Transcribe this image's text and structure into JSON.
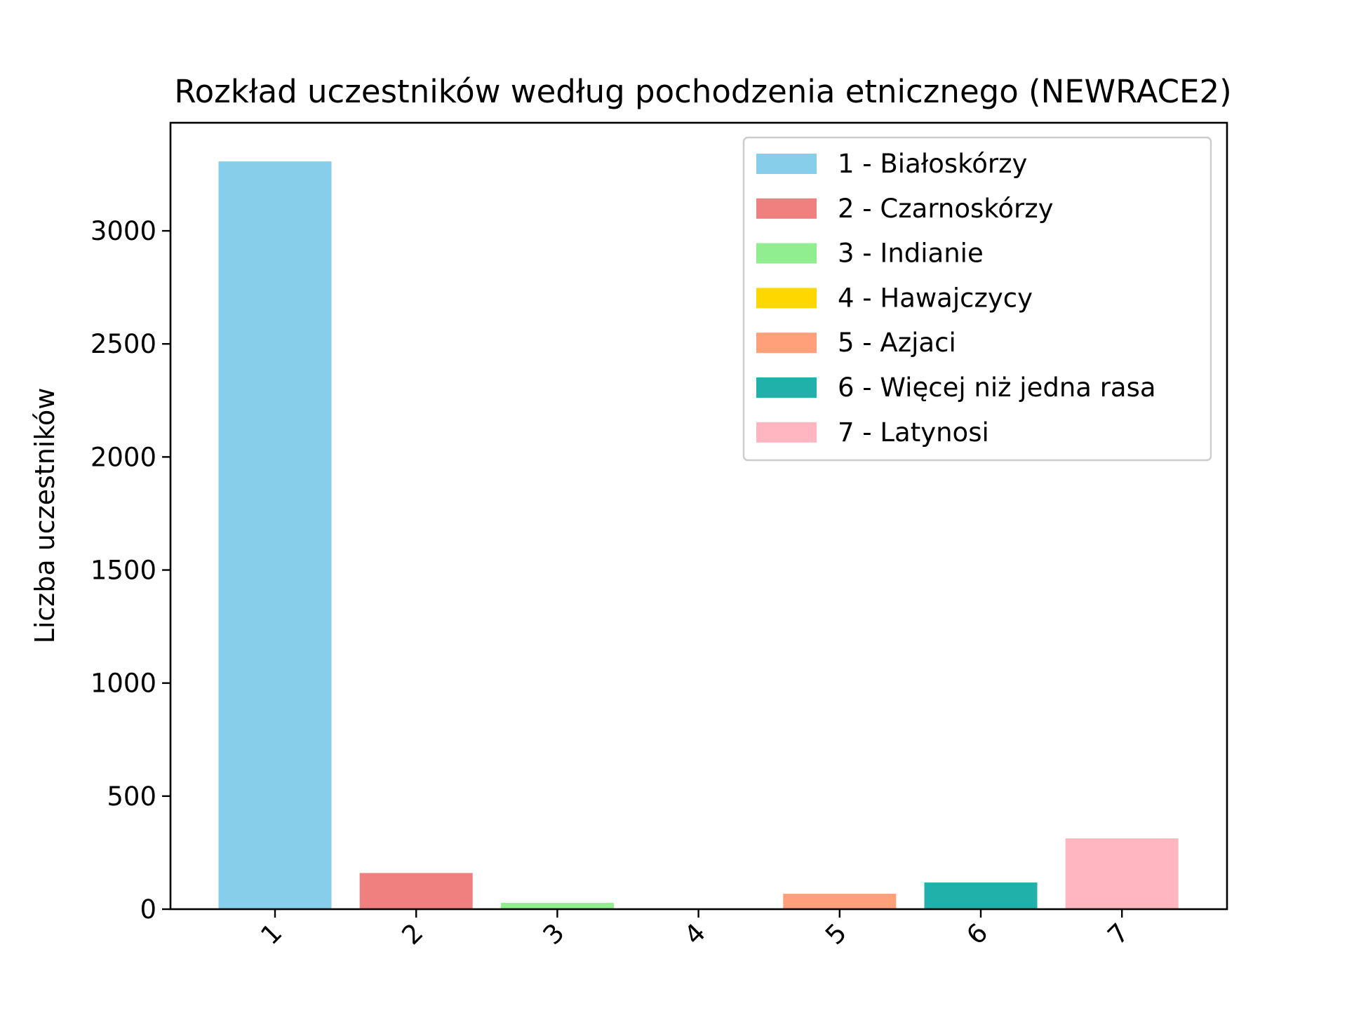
{
  "chart_data": {
    "type": "bar",
    "title": "Rozkład uczestników według pochodzenia etnicznego (NEWRACE2)",
    "xlabel": "",
    "ylabel": "Liczba uczestników",
    "categories": [
      "1",
      "2",
      "3",
      "4",
      "5",
      "6",
      "7"
    ],
    "values": [
      3307,
      160,
      28,
      3,
      68,
      118,
      313
    ],
    "colors": [
      "#87CEEB",
      "#F08080",
      "#90EE90",
      "#FFD700",
      "#FFA07A",
      "#20B2AA",
      "#FFB6C1"
    ],
    "ylim": [
      0,
      3478
    ],
    "yticks": [
      0,
      500,
      1000,
      1500,
      2000,
      2500,
      3000
    ],
    "grid": false,
    "legend": {
      "placement": "top-right",
      "entries": [
        "1 - Białoskórzy",
        "2 - Czarnoskórzy",
        "3 - Indianie",
        "4 - Hawajczycy",
        "5 - Azjaci",
        "6 - Więcej niż jedna rasa",
        "7 - Latynosi"
      ]
    }
  }
}
